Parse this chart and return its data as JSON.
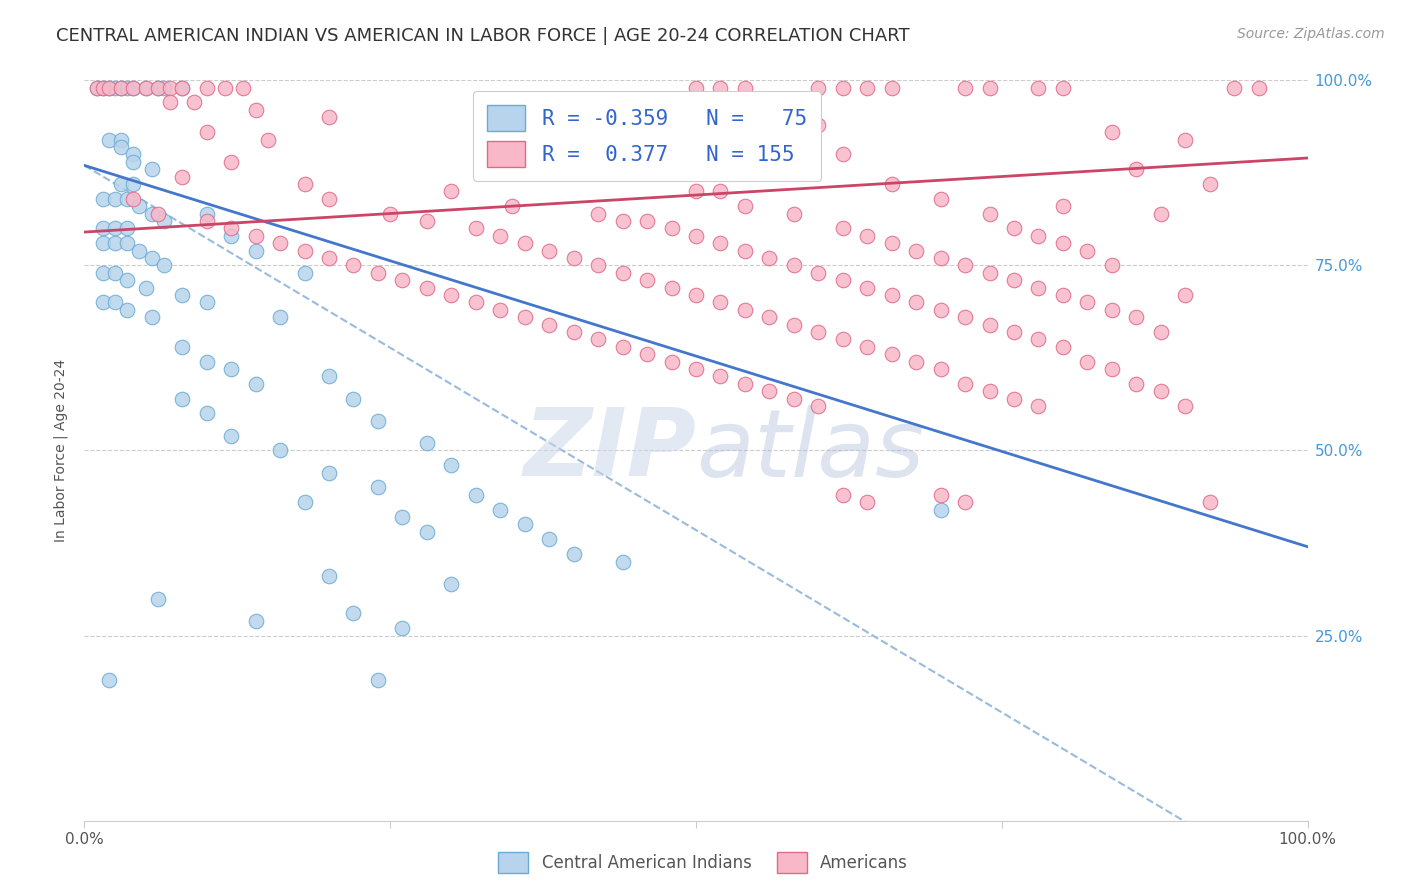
{
  "title": "CENTRAL AMERICAN INDIAN VS AMERICAN IN LABOR FORCE | AGE 20-24 CORRELATION CHART",
  "source": "Source: ZipAtlas.com",
  "ylabel": "In Labor Force | Age 20-24",
  "xlim": [
    0.0,
    1.0
  ],
  "ylim": [
    0.0,
    1.0
  ],
  "title_fontsize": 13,
  "source_fontsize": 10,
  "background_color": "#ffffff",
  "blue_scatter_color": "#b8d4ec",
  "blue_edge_color": "#6aaad4",
  "pink_scatter_color": "#f8b8c8",
  "pink_edge_color": "#e06888",
  "blue_line_color": "#4477cc",
  "pink_line_color": "#cc4466",
  "dashed_line_color": "#99bbdd",
  "grid_color": "#e8e8e8",
  "right_axis_color": "#4499dd",
  "legend_text_color": "#3366cc",
  "blue_points": [
    [
      0.01,
      0.99
    ],
    [
      0.015,
      0.99
    ],
    [
      0.02,
      0.99
    ],
    [
      0.025,
      0.99
    ],
    [
      0.03,
      0.99
    ],
    [
      0.035,
      0.99
    ],
    [
      0.04,
      0.99
    ],
    [
      0.05,
      0.99
    ],
    [
      0.06,
      0.99
    ],
    [
      0.065,
      0.99
    ],
    [
      0.08,
      0.99
    ],
    [
      0.02,
      0.92
    ],
    [
      0.03,
      0.92
    ],
    [
      0.03,
      0.91
    ],
    [
      0.04,
      0.9
    ],
    [
      0.04,
      0.89
    ],
    [
      0.055,
      0.88
    ],
    [
      0.03,
      0.86
    ],
    [
      0.04,
      0.86
    ],
    [
      0.015,
      0.84
    ],
    [
      0.025,
      0.84
    ],
    [
      0.035,
      0.84
    ],
    [
      0.045,
      0.83
    ],
    [
      0.055,
      0.82
    ],
    [
      0.065,
      0.81
    ],
    [
      0.015,
      0.8
    ],
    [
      0.025,
      0.8
    ],
    [
      0.035,
      0.8
    ],
    [
      0.015,
      0.78
    ],
    [
      0.025,
      0.78
    ],
    [
      0.035,
      0.78
    ],
    [
      0.045,
      0.77
    ],
    [
      0.055,
      0.76
    ],
    [
      0.065,
      0.75
    ],
    [
      0.015,
      0.74
    ],
    [
      0.025,
      0.74
    ],
    [
      0.035,
      0.73
    ],
    [
      0.05,
      0.72
    ],
    [
      0.015,
      0.7
    ],
    [
      0.025,
      0.7
    ],
    [
      0.035,
      0.69
    ],
    [
      0.055,
      0.68
    ],
    [
      0.1,
      0.82
    ],
    [
      0.12,
      0.79
    ],
    [
      0.14,
      0.77
    ],
    [
      0.18,
      0.74
    ],
    [
      0.08,
      0.71
    ],
    [
      0.1,
      0.7
    ],
    [
      0.16,
      0.68
    ],
    [
      0.08,
      0.64
    ],
    [
      0.1,
      0.62
    ],
    [
      0.12,
      0.61
    ],
    [
      0.2,
      0.6
    ],
    [
      0.14,
      0.59
    ],
    [
      0.08,
      0.57
    ],
    [
      0.22,
      0.57
    ],
    [
      0.1,
      0.55
    ],
    [
      0.24,
      0.54
    ],
    [
      0.12,
      0.52
    ],
    [
      0.28,
      0.51
    ],
    [
      0.16,
      0.5
    ],
    [
      0.3,
      0.48
    ],
    [
      0.2,
      0.47
    ],
    [
      0.24,
      0.45
    ],
    [
      0.32,
      0.44
    ],
    [
      0.18,
      0.43
    ],
    [
      0.34,
      0.42
    ],
    [
      0.26,
      0.41
    ],
    [
      0.36,
      0.4
    ],
    [
      0.28,
      0.39
    ],
    [
      0.38,
      0.38
    ],
    [
      0.4,
      0.36
    ],
    [
      0.44,
      0.35
    ],
    [
      0.2,
      0.33
    ],
    [
      0.3,
      0.32
    ],
    [
      0.06,
      0.3
    ],
    [
      0.22,
      0.28
    ],
    [
      0.14,
      0.27
    ],
    [
      0.26,
      0.26
    ],
    [
      0.02,
      0.19
    ],
    [
      0.24,
      0.19
    ],
    [
      0.7,
      0.42
    ]
  ],
  "pink_points": [
    [
      0.01,
      0.99
    ],
    [
      0.015,
      0.99
    ],
    [
      0.02,
      0.99
    ],
    [
      0.03,
      0.99
    ],
    [
      0.04,
      0.99
    ],
    [
      0.05,
      0.99
    ],
    [
      0.06,
      0.99
    ],
    [
      0.07,
      0.99
    ],
    [
      0.08,
      0.99
    ],
    [
      0.1,
      0.99
    ],
    [
      0.115,
      0.99
    ],
    [
      0.13,
      0.99
    ],
    [
      0.5,
      0.99
    ],
    [
      0.52,
      0.99
    ],
    [
      0.54,
      0.99
    ],
    [
      0.6,
      0.99
    ],
    [
      0.62,
      0.99
    ],
    [
      0.64,
      0.99
    ],
    [
      0.66,
      0.99
    ],
    [
      0.72,
      0.99
    ],
    [
      0.74,
      0.99
    ],
    [
      0.78,
      0.99
    ],
    [
      0.8,
      0.99
    ],
    [
      0.94,
      0.99
    ],
    [
      0.96,
      0.99
    ],
    [
      0.07,
      0.97
    ],
    [
      0.09,
      0.97
    ],
    [
      0.14,
      0.96
    ],
    [
      0.2,
      0.95
    ],
    [
      0.6,
      0.94
    ],
    [
      0.1,
      0.93
    ],
    [
      0.56,
      0.93
    ],
    [
      0.84,
      0.93
    ],
    [
      0.15,
      0.92
    ],
    [
      0.58,
      0.92
    ],
    [
      0.9,
      0.92
    ],
    [
      0.62,
      0.9
    ],
    [
      0.12,
      0.89
    ],
    [
      0.5,
      0.89
    ],
    [
      0.54,
      0.89
    ],
    [
      0.86,
      0.88
    ],
    [
      0.08,
      0.87
    ],
    [
      0.18,
      0.86
    ],
    [
      0.66,
      0.86
    ],
    [
      0.92,
      0.86
    ],
    [
      0.3,
      0.85
    ],
    [
      0.5,
      0.85
    ],
    [
      0.52,
      0.85
    ],
    [
      0.04,
      0.84
    ],
    [
      0.2,
      0.84
    ],
    [
      0.7,
      0.84
    ],
    [
      0.35,
      0.83
    ],
    [
      0.54,
      0.83
    ],
    [
      0.8,
      0.83
    ],
    [
      0.06,
      0.82
    ],
    [
      0.25,
      0.82
    ],
    [
      0.42,
      0.82
    ],
    [
      0.58,
      0.82
    ],
    [
      0.74,
      0.82
    ],
    [
      0.88,
      0.82
    ],
    [
      0.1,
      0.81
    ],
    [
      0.28,
      0.81
    ],
    [
      0.44,
      0.81
    ],
    [
      0.46,
      0.81
    ],
    [
      0.12,
      0.8
    ],
    [
      0.32,
      0.8
    ],
    [
      0.48,
      0.8
    ],
    [
      0.62,
      0.8
    ],
    [
      0.76,
      0.8
    ],
    [
      0.14,
      0.79
    ],
    [
      0.34,
      0.79
    ],
    [
      0.5,
      0.79
    ],
    [
      0.64,
      0.79
    ],
    [
      0.78,
      0.79
    ],
    [
      0.16,
      0.78
    ],
    [
      0.36,
      0.78
    ],
    [
      0.52,
      0.78
    ],
    [
      0.66,
      0.78
    ],
    [
      0.8,
      0.78
    ],
    [
      0.18,
      0.77
    ],
    [
      0.38,
      0.77
    ],
    [
      0.54,
      0.77
    ],
    [
      0.68,
      0.77
    ],
    [
      0.82,
      0.77
    ],
    [
      0.2,
      0.76
    ],
    [
      0.4,
      0.76
    ],
    [
      0.56,
      0.76
    ],
    [
      0.7,
      0.76
    ],
    [
      0.22,
      0.75
    ],
    [
      0.42,
      0.75
    ],
    [
      0.58,
      0.75
    ],
    [
      0.72,
      0.75
    ],
    [
      0.84,
      0.75
    ],
    [
      0.24,
      0.74
    ],
    [
      0.44,
      0.74
    ],
    [
      0.6,
      0.74
    ],
    [
      0.74,
      0.74
    ],
    [
      0.26,
      0.73
    ],
    [
      0.46,
      0.73
    ],
    [
      0.62,
      0.73
    ],
    [
      0.76,
      0.73
    ],
    [
      0.28,
      0.72
    ],
    [
      0.48,
      0.72
    ],
    [
      0.64,
      0.72
    ],
    [
      0.78,
      0.72
    ],
    [
      0.3,
      0.71
    ],
    [
      0.5,
      0.71
    ],
    [
      0.66,
      0.71
    ],
    [
      0.8,
      0.71
    ],
    [
      0.9,
      0.71
    ],
    [
      0.32,
      0.7
    ],
    [
      0.52,
      0.7
    ],
    [
      0.68,
      0.7
    ],
    [
      0.82,
      0.7
    ],
    [
      0.34,
      0.69
    ],
    [
      0.54,
      0.69
    ],
    [
      0.7,
      0.69
    ],
    [
      0.84,
      0.69
    ],
    [
      0.36,
      0.68
    ],
    [
      0.56,
      0.68
    ],
    [
      0.72,
      0.68
    ],
    [
      0.86,
      0.68
    ],
    [
      0.38,
      0.67
    ],
    [
      0.58,
      0.67
    ],
    [
      0.74,
      0.67
    ],
    [
      0.4,
      0.66
    ],
    [
      0.6,
      0.66
    ],
    [
      0.76,
      0.66
    ],
    [
      0.88,
      0.66
    ],
    [
      0.42,
      0.65
    ],
    [
      0.62,
      0.65
    ],
    [
      0.78,
      0.65
    ],
    [
      0.44,
      0.64
    ],
    [
      0.64,
      0.64
    ],
    [
      0.8,
      0.64
    ],
    [
      0.46,
      0.63
    ],
    [
      0.66,
      0.63
    ],
    [
      0.48,
      0.62
    ],
    [
      0.68,
      0.62
    ],
    [
      0.82,
      0.62
    ],
    [
      0.5,
      0.61
    ],
    [
      0.7,
      0.61
    ],
    [
      0.84,
      0.61
    ],
    [
      0.52,
      0.6
    ],
    [
      0.54,
      0.59
    ],
    [
      0.72,
      0.59
    ],
    [
      0.86,
      0.59
    ],
    [
      0.56,
      0.58
    ],
    [
      0.74,
      0.58
    ],
    [
      0.88,
      0.58
    ],
    [
      0.58,
      0.57
    ],
    [
      0.76,
      0.57
    ],
    [
      0.6,
      0.56
    ],
    [
      0.78,
      0.56
    ],
    [
      0.9,
      0.56
    ],
    [
      0.62,
      0.44
    ],
    [
      0.7,
      0.44
    ],
    [
      0.64,
      0.43
    ],
    [
      0.72,
      0.43
    ],
    [
      0.92,
      0.43
    ]
  ],
  "blue_line_x": [
    0.0,
    1.0
  ],
  "blue_line_y": [
    0.885,
    0.37
  ],
  "pink_line_x": [
    0.0,
    1.0
  ],
  "pink_line_y": [
    0.795,
    0.895
  ],
  "dashed_line_x": [
    0.0,
    1.0
  ],
  "dashed_line_y": [
    0.885,
    -0.1
  ]
}
